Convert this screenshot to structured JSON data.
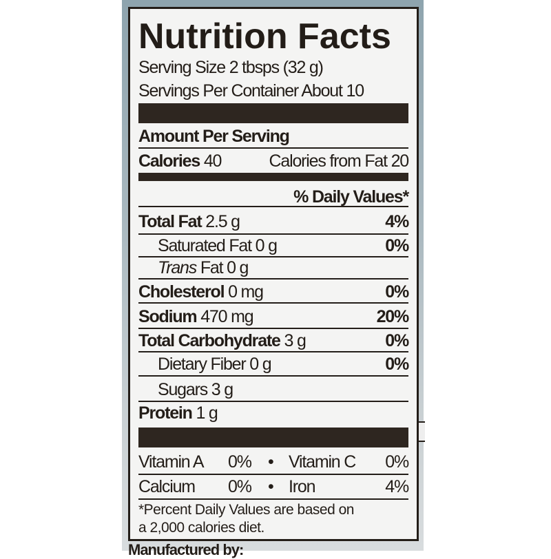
{
  "title": "Nutrition Facts",
  "serving_size": "Serving Size 2 tbsps (32 g)",
  "servings_per_container": "Servings Per Container About 10",
  "amount_per_serving": "Amount Per Serving",
  "calories": {
    "label": "Calories",
    "value": "40",
    "from_fat": "Calories from Fat 20"
  },
  "daily_values_header": "% Daily Values*",
  "nutrients": [
    {
      "label": "Total Fat",
      "amount": "2.5 g",
      "dv": "4%"
    },
    {
      "label": "Saturated Fat",
      "amount": "0 g",
      "dv": "0%"
    },
    {
      "label": "Trans",
      "amount": "Fat 0 g",
      "dv": ""
    },
    {
      "label": "Cholesterol",
      "amount": "0 mg",
      "dv": "0%"
    },
    {
      "label": "Sodium",
      "amount": "470 mg",
      "dv": "20%"
    },
    {
      "label": "Total Carbohydrate",
      "amount": "3 g",
      "dv": "0%"
    },
    {
      "label": "Dietary Fiber",
      "amount": "0 g",
      "dv": "0%"
    },
    {
      "label": "Sugars",
      "amount": "3 g",
      "dv": ""
    },
    {
      "label": "Protein",
      "amount": "1 g",
      "dv": ""
    }
  ],
  "vitamins": [
    {
      "left_label": "Vitamin A",
      "left_value": "0%",
      "bullet": "•",
      "right_label": "Vitamin C",
      "right_value": "0%"
    },
    {
      "left_label": "Calcium",
      "left_value": "0%",
      "bullet": "•",
      "right_label": "Iron",
      "right_value": "4%"
    }
  ],
  "footnote_line1": "*Percent Daily Values are based on",
  "footnote_line2": "a  2,000 calories diet.",
  "manufacturer": "Manufactured by:",
  "colors": {
    "ink": "#231d18",
    "label_bg": "#f4f4f3",
    "bottle": "#9fb0b8"
  }
}
